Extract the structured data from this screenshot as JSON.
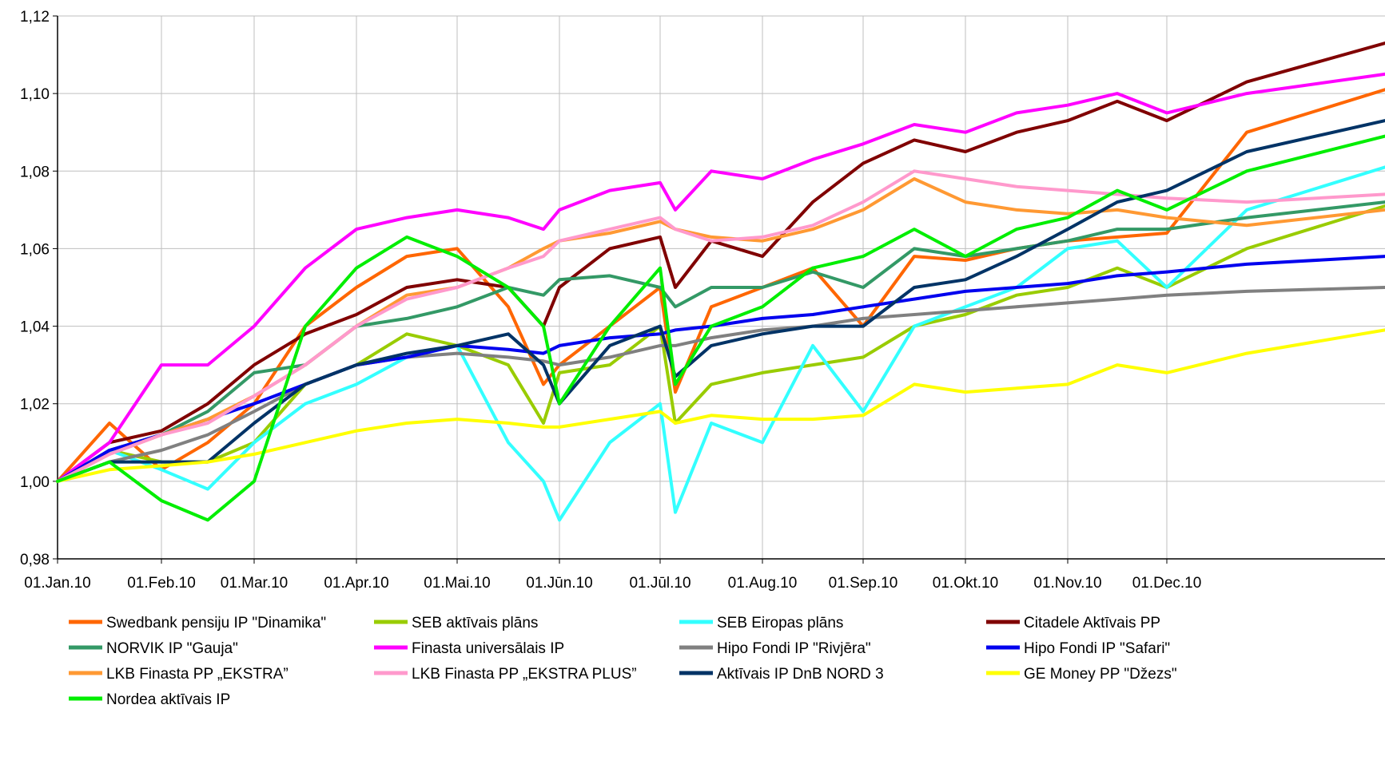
{
  "chart_data": {
    "type": "line",
    "title": "",
    "xlabel": "",
    "ylabel": "",
    "ylim": [
      0.98,
      1.12
    ],
    "yticks": [
      "0,98",
      "1,00",
      "1,02",
      "1,04",
      "1,06",
      "1,08",
      "1,10",
      "1,12"
    ],
    "ytick_values": [
      0.98,
      1.0,
      1.02,
      1.04,
      1.06,
      1.08,
      1.1,
      1.12
    ],
    "xticks": [
      "01.Jan.10",
      "01.Feb.10",
      "01.Mar.10",
      "01.Apr.10",
      "01.Mai.10",
      "01.Jūn.10",
      "01.Jūl.10",
      "01.Aug.10",
      "01.Sep.10",
      "01.Okt.10",
      "01.Nov.10",
      "01.Dec.10"
    ],
    "x": [
      "01.Jan.10",
      "15.Jan.10",
      "01.Feb.10",
      "15.Feb.10",
      "01.Mar.10",
      "15.Mar.10",
      "01.Apr.10",
      "15.Apr.10",
      "01.Mai.10",
      "15.Mai.10",
      "25.Mai.10",
      "01.Jūn.10",
      "15.Jūn.10",
      "01.Jūl.10",
      "07.Jūl.10",
      "15.Jūl.10",
      "01.Aug.10",
      "15.Aug.10",
      "01.Sep.10",
      "15.Sep.10",
      "01.Okt.10",
      "15.Okt.10",
      "01.Nov.10",
      "15.Nov.10",
      "01.Dec.10",
      "15.Dec.10",
      "31.Dec.10"
    ],
    "grid": true,
    "legend_position": "bottom",
    "series": [
      {
        "name": "Swedbank pensiju IP \"Dinamika\"",
        "color": "#FF6600",
        "width": 4,
        "values": [
          1.0,
          1.015,
          1.003,
          1.01,
          1.02,
          1.04,
          1.05,
          1.058,
          1.06,
          1.045,
          1.025,
          1.03,
          1.04,
          1.05,
          1.023,
          1.045,
          1.05,
          1.055,
          1.04,
          1.058,
          1.057,
          1.06,
          1.062,
          1.063,
          1.064,
          1.09,
          1.101
        ]
      },
      {
        "name": "SEB aktīvais plāns",
        "color": "#99CC00",
        "width": 4,
        "values": [
          1.0,
          1.008,
          1.005,
          1.005,
          1.01,
          1.025,
          1.03,
          1.038,
          1.035,
          1.03,
          1.015,
          1.028,
          1.03,
          1.04,
          1.015,
          1.025,
          1.028,
          1.03,
          1.032,
          1.04,
          1.043,
          1.048,
          1.05,
          1.055,
          1.05,
          1.06,
          1.071
        ]
      },
      {
        "name": "SEB Eiropas plāns",
        "color": "#33FFFF",
        "width": 4,
        "values": [
          1.0,
          1.008,
          1.003,
          0.998,
          1.01,
          1.02,
          1.025,
          1.032,
          1.035,
          1.01,
          1.0,
          0.99,
          1.01,
          1.02,
          0.992,
          1.015,
          1.01,
          1.035,
          1.018,
          1.04,
          1.045,
          1.05,
          1.06,
          1.062,
          1.05,
          1.07,
          1.081
        ]
      },
      {
        "name": "Citadele Aktīvais PP",
        "color": "#800000",
        "width": 4,
        "values": [
          1.0,
          1.01,
          1.013,
          1.02,
          1.03,
          1.038,
          1.043,
          1.05,
          1.052,
          1.05,
          1.04,
          1.05,
          1.06,
          1.063,
          1.05,
          1.062,
          1.058,
          1.072,
          1.082,
          1.088,
          1.085,
          1.09,
          1.093,
          1.098,
          1.093,
          1.103,
          1.113
        ]
      },
      {
        "name": "NORVIK IP \"Gauja\"",
        "color": "#339966",
        "width": 4,
        "values": [
          1.0,
          1.008,
          1.012,
          1.018,
          1.028,
          1.03,
          1.04,
          1.042,
          1.045,
          1.05,
          1.048,
          1.052,
          1.053,
          1.05,
          1.045,
          1.05,
          1.05,
          1.054,
          1.05,
          1.06,
          1.058,
          1.06,
          1.062,
          1.065,
          1.065,
          1.068,
          1.072
        ]
      },
      {
        "name": "Finasta universālais IP",
        "color": "#FF00FF",
        "width": 4,
        "values": [
          1.0,
          1.01,
          1.03,
          1.03,
          1.04,
          1.055,
          1.065,
          1.068,
          1.07,
          1.068,
          1.065,
          1.07,
          1.075,
          1.077,
          1.07,
          1.08,
          1.078,
          1.083,
          1.087,
          1.092,
          1.09,
          1.095,
          1.097,
          1.1,
          1.095,
          1.1,
          1.105
        ]
      },
      {
        "name": "Hipo Fondi IP \"Rivjēra\"",
        "color": "#808080",
        "width": 4,
        "values": [
          1.0,
          1.005,
          1.008,
          1.012,
          1.018,
          1.025,
          1.03,
          1.032,
          1.033,
          1.032,
          1.031,
          1.03,
          1.032,
          1.035,
          1.035,
          1.037,
          1.039,
          1.04,
          1.042,
          1.043,
          1.044,
          1.045,
          1.046,
          1.047,
          1.048,
          1.049,
          1.05
        ]
      },
      {
        "name": "Hipo Fondi IP \"Safari\"",
        "color": "#0000EE",
        "width": 4,
        "values": [
          1.0,
          1.008,
          1.012,
          1.016,
          1.02,
          1.025,
          1.03,
          1.032,
          1.035,
          1.034,
          1.033,
          1.035,
          1.037,
          1.038,
          1.039,
          1.04,
          1.042,
          1.043,
          1.045,
          1.047,
          1.049,
          1.05,
          1.051,
          1.053,
          1.054,
          1.056,
          1.058
        ]
      },
      {
        "name": "LKB Finasta PP „EKSTRA”",
        "color": "#FF9933",
        "width": 4,
        "values": [
          1.0,
          1.007,
          1.012,
          1.016,
          1.022,
          1.03,
          1.04,
          1.048,
          1.05,
          1.055,
          1.06,
          1.062,
          1.064,
          1.067,
          1.065,
          1.063,
          1.062,
          1.065,
          1.07,
          1.078,
          1.072,
          1.07,
          1.069,
          1.07,
          1.068,
          1.066,
          1.07
        ]
      },
      {
        "name": "LKB Finasta PP „EKSTRA PLUS”",
        "color": "#FF99CC",
        "width": 4,
        "values": [
          1.0,
          1.007,
          1.012,
          1.015,
          1.022,
          1.03,
          1.04,
          1.047,
          1.05,
          1.055,
          1.058,
          1.062,
          1.065,
          1.068,
          1.065,
          1.062,
          1.063,
          1.066,
          1.072,
          1.08,
          1.078,
          1.076,
          1.075,
          1.074,
          1.073,
          1.072,
          1.074
        ]
      },
      {
        "name": "Aktīvais IP DnB NORD 3",
        "color": "#003366",
        "width": 4,
        "values": [
          1.0,
          1.005,
          1.005,
          1.005,
          1.015,
          1.025,
          1.03,
          1.033,
          1.035,
          1.038,
          1.03,
          1.02,
          1.035,
          1.04,
          1.027,
          1.035,
          1.038,
          1.04,
          1.04,
          1.05,
          1.052,
          1.058,
          1.065,
          1.072,
          1.075,
          1.085,
          1.093
        ]
      },
      {
        "name": "GE Money PP \"Džezs\"",
        "color": "#FFFF00",
        "width": 4,
        "values": [
          1.0,
          1.003,
          1.004,
          1.005,
          1.007,
          1.01,
          1.013,
          1.015,
          1.016,
          1.015,
          1.014,
          1.014,
          1.016,
          1.018,
          1.015,
          1.017,
          1.016,
          1.016,
          1.017,
          1.025,
          1.023,
          1.024,
          1.025,
          1.03,
          1.028,
          1.033,
          1.039
        ]
      },
      {
        "name": "Nordea aktīvais IP",
        "color": "#00EE00",
        "width": 4,
        "values": [
          1.0,
          1.005,
          0.995,
          0.99,
          1.0,
          1.04,
          1.055,
          1.063,
          1.058,
          1.05,
          1.04,
          1.02,
          1.04,
          1.055,
          1.025,
          1.04,
          1.045,
          1.055,
          1.058,
          1.065,
          1.058,
          1.065,
          1.068,
          1.075,
          1.07,
          1.08,
          1.089
        ]
      }
    ]
  }
}
